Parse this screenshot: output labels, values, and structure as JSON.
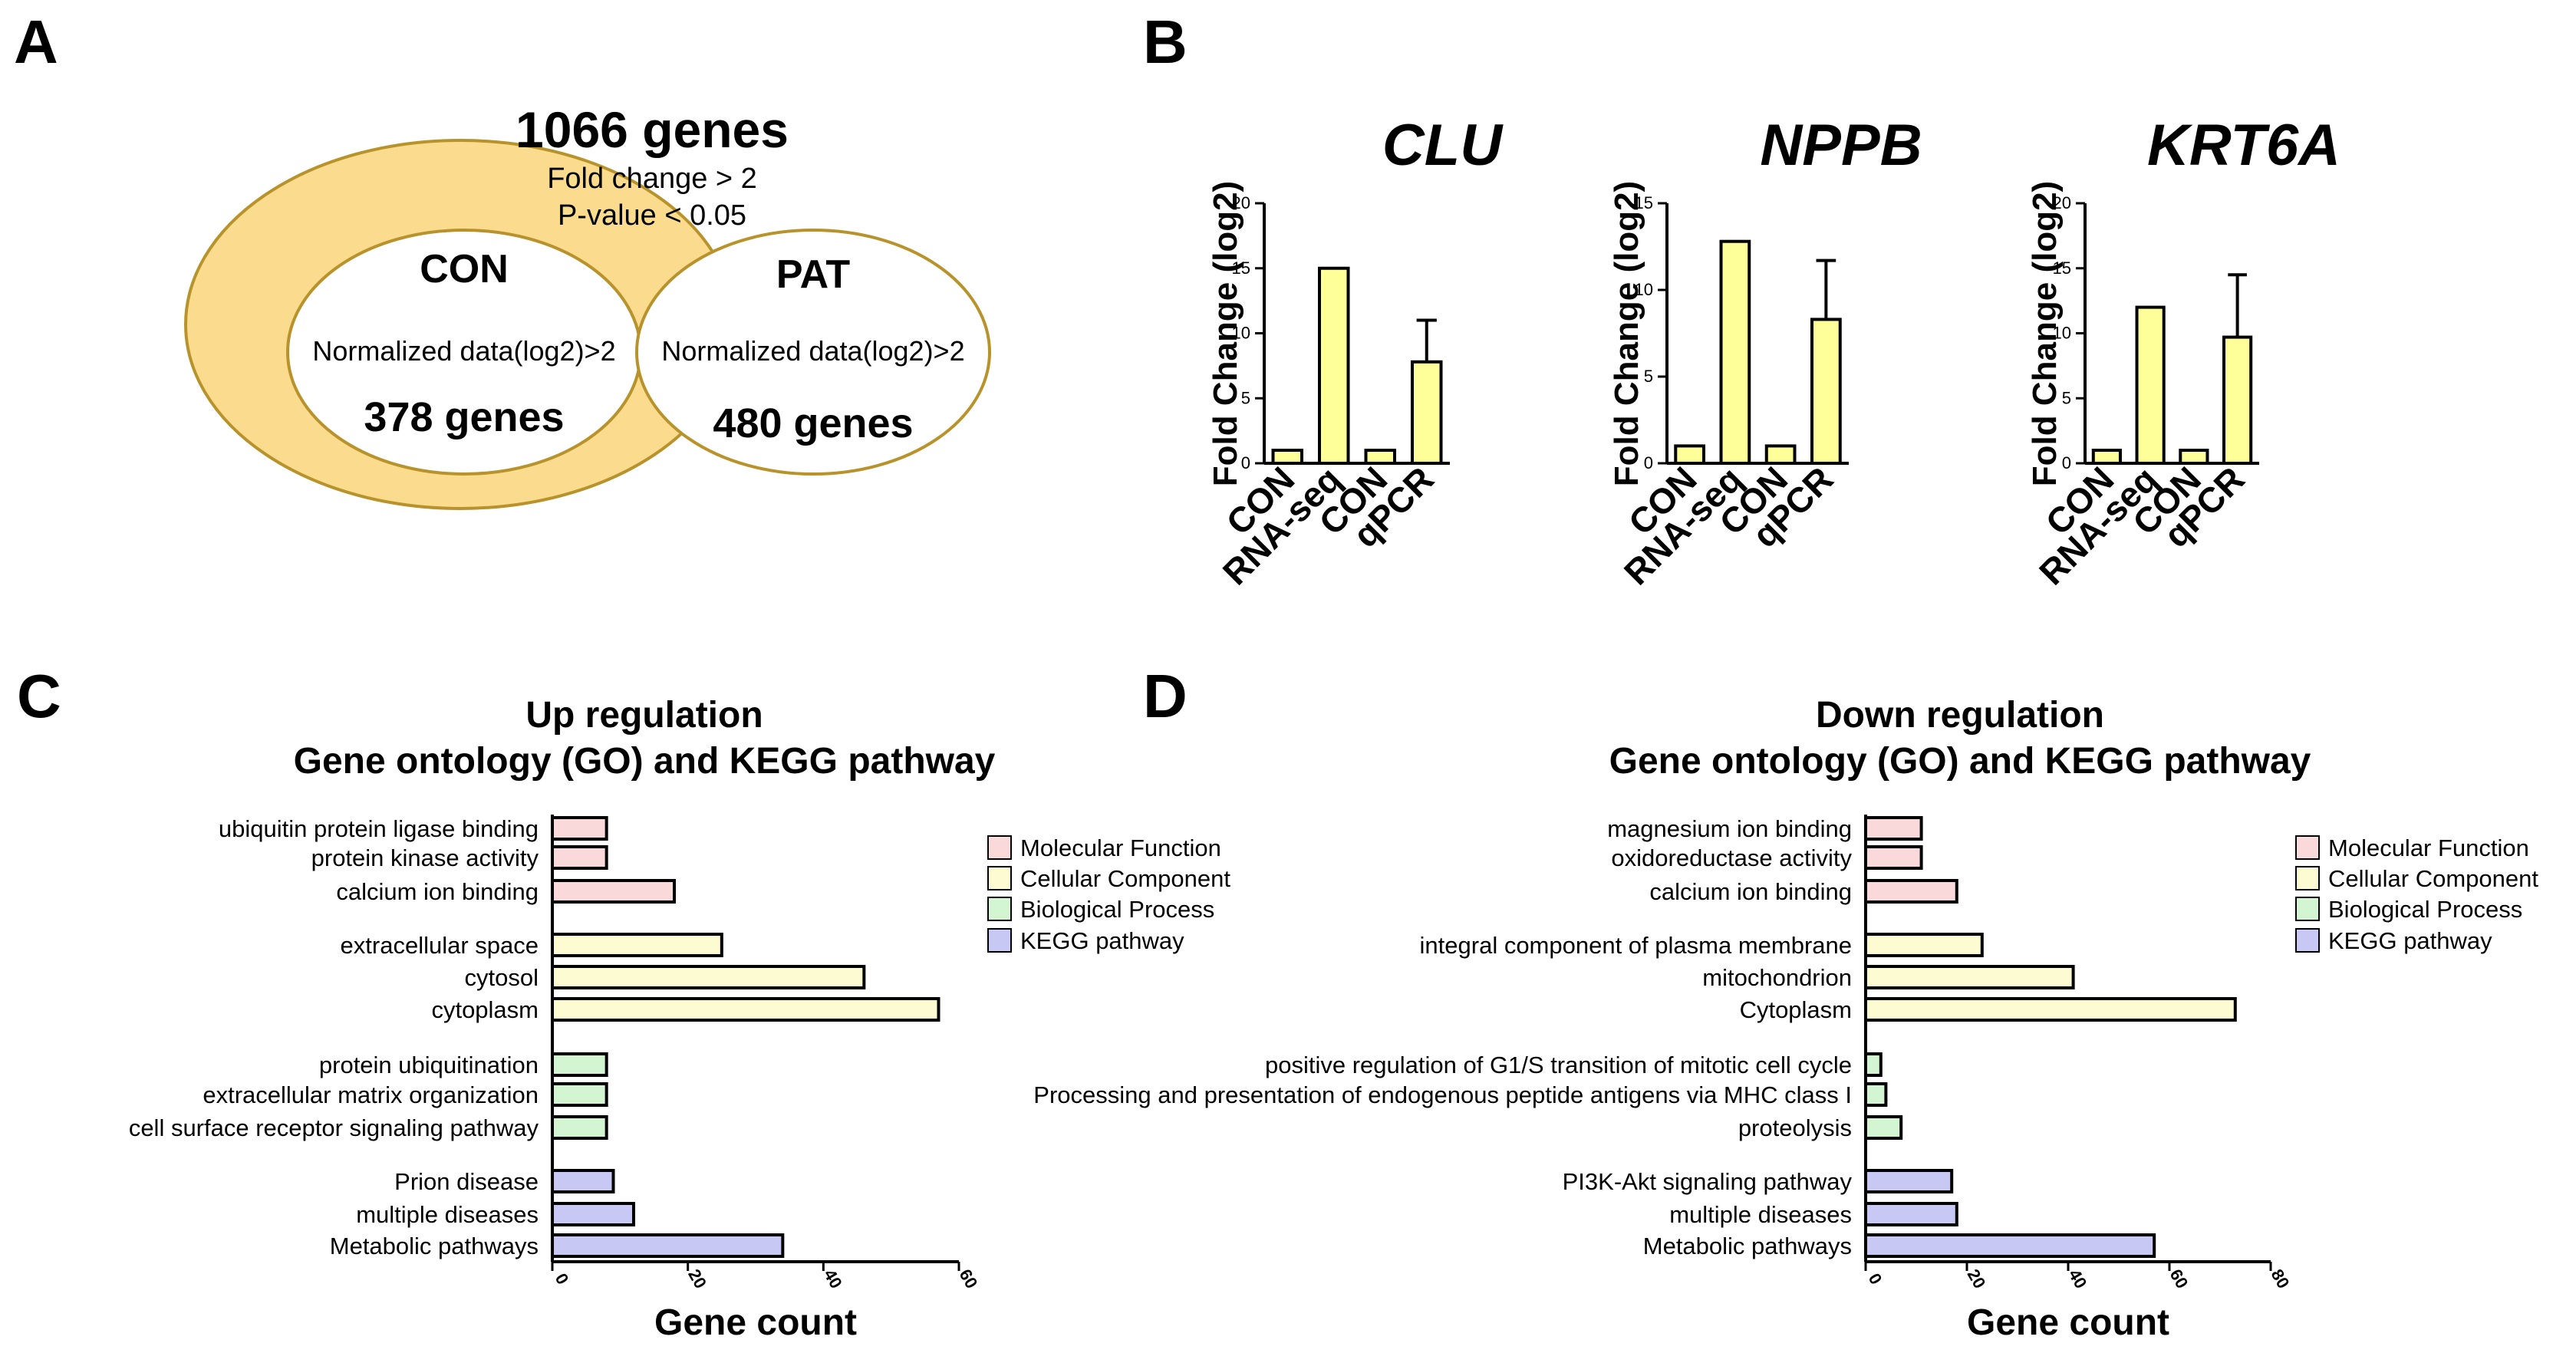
{
  "panel_a": {
    "letter": "A",
    "outer_title": "1066 genes",
    "outer_line1": "Fold change > 2",
    "outer_line2": "P-value < 0.05",
    "left_title": "CON",
    "left_sub": "Normalized data(log2)>2",
    "left_count": "378 genes",
    "right_title": "PAT",
    "right_sub": "Normalized data(log2)>2",
    "right_count": "480 genes"
  },
  "panel_b": {
    "letter": "B"
  },
  "panel_c": {
    "letter": "C"
  },
  "panel_d": {
    "letter": "D"
  },
  "colors": {
    "molecular_function": "#f9d9d9",
    "cellular_component": "#fdfbd2",
    "biological_process": "#d3f5d2",
    "kegg_pathway": "#c8c8f5",
    "bar_b": "#ffff99",
    "venn_fill": "#fbdc8e"
  },
  "chart_data": [
    {
      "id": "clu",
      "type": "bar",
      "title": "CLU",
      "ylabel": "Fold Change (log2)",
      "ylim": [
        0,
        20
      ],
      "yticks": [
        0,
        5,
        10,
        15,
        20
      ],
      "categories": [
        "CON",
        "RNA-seq",
        "CON",
        "qPCR"
      ],
      "values": [
        1,
        15,
        1,
        7.8
      ],
      "errors": [
        0,
        0,
        0,
        3.2
      ]
    },
    {
      "id": "nppb",
      "type": "bar",
      "title": "NPPB",
      "ylabel": "Fold Change (log2)",
      "ylim": [
        0,
        15
      ],
      "yticks": [
        0,
        5,
        10,
        15
      ],
      "categories": [
        "CON",
        "RNA-seq",
        "CON",
        "qPCR"
      ],
      "values": [
        1,
        12.8,
        1,
        8.3
      ],
      "errors": [
        0,
        0,
        0,
        3.4
      ]
    },
    {
      "id": "krt6a",
      "type": "bar",
      "title": "KRT6A",
      "ylabel": "Fold Change (log2)",
      "ylim": [
        0,
        20
      ],
      "yticks": [
        0,
        5,
        10,
        15,
        20
      ],
      "categories": [
        "CON",
        "RNA-seq",
        "CON",
        "qPCR"
      ],
      "values": [
        1,
        12,
        1,
        9.7
      ],
      "errors": [
        0,
        0,
        0,
        4.8
      ]
    },
    {
      "id": "up",
      "type": "bar",
      "orientation": "horizontal",
      "title_line1": "Up regulation",
      "title_line2": "Gene ontology (GO) and KEGG pathway",
      "xlabel": "Gene count",
      "xlim": [
        0,
        60
      ],
      "xticks": [
        0,
        20,
        40,
        60
      ],
      "legend": [
        "Molecular Function",
        "Cellular Component",
        "Biological Process",
        "KEGG pathway"
      ],
      "groups": [
        {
          "category": "Molecular Function",
          "labels": [
            "ubiquitin protein ligase binding",
            "protein kinase activity",
            "calcium ion binding"
          ],
          "values": [
            8,
            8,
            18
          ]
        },
        {
          "category": "Cellular Component",
          "labels": [
            "extracellular space",
            "cytosol",
            "cytoplasm"
          ],
          "values": [
            25,
            46,
            57
          ]
        },
        {
          "category": "Biological Process",
          "labels": [
            "protein ubiquitination",
            "extracellular matrix organization",
            "cell surface receptor signaling pathway"
          ],
          "values": [
            8,
            8,
            8
          ]
        },
        {
          "category": "KEGG pathway",
          "labels": [
            "Prion disease",
            "multiple diseases",
            "Metabolic pathways"
          ],
          "values": [
            9,
            12,
            34
          ]
        }
      ]
    },
    {
      "id": "down",
      "type": "bar",
      "orientation": "horizontal",
      "title_line1": "Down regulation",
      "title_line2": "Gene ontology (GO) and KEGG pathway",
      "xlabel": "Gene count",
      "xlim": [
        0,
        80
      ],
      "xticks": [
        0,
        20,
        40,
        60,
        80
      ],
      "legend": [
        "Molecular Function",
        "Cellular Component",
        "Biological Process",
        "KEGG pathway"
      ],
      "groups": [
        {
          "category": "Molecular Function",
          "labels": [
            "magnesium ion binding",
            "oxidoreductase activity",
            "calcium ion binding"
          ],
          "values": [
            11,
            11,
            18
          ]
        },
        {
          "category": "Cellular Component",
          "labels": [
            "integral component of plasma membrane",
            "mitochondrion",
            "Cytoplasm"
          ],
          "values": [
            23,
            41,
            73
          ]
        },
        {
          "category": "Biological Process",
          "labels": [
            "positive regulation of G1/S transition of mitotic cell cycle",
            "Processing and presentation of endogenous peptide antigens via MHC class I",
            "proteolysis"
          ],
          "values": [
            3,
            4,
            7
          ]
        },
        {
          "category": "KEGG pathway",
          "labels": [
            "PI3K-Akt signaling pathway",
            "multiple diseases",
            "Metabolic pathways"
          ],
          "values": [
            17,
            18,
            57
          ]
        }
      ]
    }
  ]
}
